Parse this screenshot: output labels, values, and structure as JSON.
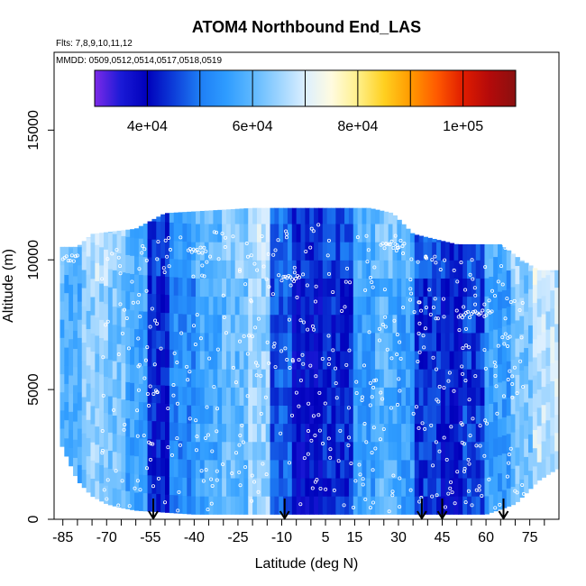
{
  "chart_data": {
    "type": "heatmap",
    "title": "ATOM4 Northbound End_LAS",
    "flights_note": "Flts: 7,8,9,10,11,12",
    "dates_note": "MMDD: 0509,0512,0514,0517,0518,0519",
    "xlabel": "Latitude (deg N)",
    "ylabel": "Altitude (m)",
    "xlim": [
      -88,
      85
    ],
    "ylim": [
      0,
      18000
    ],
    "x_ticks": [
      -85,
      -70,
      -55,
      -40,
      -25,
      -10,
      5,
      15,
      30,
      45,
      60,
      75
    ],
    "x_tick_labels": [
      "-85",
      "-70",
      "-55",
      "-40",
      "-25",
      "-10",
      "5",
      "15",
      "30",
      "45",
      "60",
      "75"
    ],
    "x_minor_ticks": [
      -80,
      -75,
      -65,
      -60,
      -50,
      -45,
      -35,
      -30,
      -20,
      -15,
      -5,
      0,
      10,
      20,
      25,
      35,
      40,
      50,
      55,
      65,
      70,
      80
    ],
    "y_ticks": [
      0,
      5000,
      10000,
      15000
    ],
    "y_tick_labels": [
      "0",
      "5000",
      "10000",
      "15000"
    ],
    "colorbar": {
      "range": [
        30000,
        110000
      ],
      "tick_values": [
        40000,
        60000,
        80000,
        100000
      ],
      "tick_labels": [
        "4e+04",
        "6e+04",
        "8e+04",
        "1e+05"
      ],
      "colors": [
        "#7d2ae8",
        "#1a1ad6",
        "#0000bb",
        "#0d3dd9",
        "#1e7ef5",
        "#2e9cff",
        "#5eb8ff",
        "#9cd4ff",
        "#dcefff",
        "#fffbe0",
        "#fff08a",
        "#ffd020",
        "#ff9a00",
        "#ff5a00",
        "#e01c00",
        "#b40a0a",
        "#8a1010"
      ]
    },
    "altitude_top_by_latitude": [
      [
        -86,
        10500
      ],
      [
        -80,
        10500
      ],
      [
        -75,
        11000
      ],
      [
        -60,
        11200
      ],
      [
        -50,
        11800
      ],
      [
        -20,
        12000
      ],
      [
        0,
        12000
      ],
      [
        20,
        12000
      ],
      [
        28,
        11800
      ],
      [
        35,
        11000
      ],
      [
        50,
        10600
      ],
      [
        60,
        10600
      ],
      [
        65,
        10600
      ],
      [
        72,
        10000
      ],
      [
        78,
        9600
      ],
      [
        85,
        9600
      ]
    ],
    "altitude_bottom_by_latitude": [
      [
        -86,
        3000
      ],
      [
        -80,
        1500
      ],
      [
        -75,
        900
      ],
      [
        -70,
        600
      ],
      [
        -65,
        450
      ],
      [
        -60,
        350
      ],
      [
        -40,
        200
      ],
      [
        -10,
        200
      ],
      [
        30,
        200
      ],
      [
        60,
        200
      ],
      [
        70,
        600
      ],
      [
        78,
        1500
      ],
      [
        85,
        2000
      ]
    ],
    "concentration_columns": [
      {
        "lat_range": [
          -86,
          -78
        ],
        "value": 58000
      },
      {
        "lat_range": [
          -78,
          -70
        ],
        "value": 64000
      },
      {
        "lat_range": [
          -70,
          -63
        ],
        "value": 62000
      },
      {
        "lat_range": [
          -63,
          -56
        ],
        "value": 56000
      },
      {
        "lat_range": [
          -56,
          -48
        ],
        "value": 42000
      },
      {
        "lat_range": [
          -48,
          -40
        ],
        "value": 52000
      },
      {
        "lat_range": [
          -40,
          -30
        ],
        "value": 57000
      },
      {
        "lat_range": [
          -30,
          -22
        ],
        "value": 60000
      },
      {
        "lat_range": [
          -22,
          -14
        ],
        "value": 65000
      },
      {
        "lat_range": [
          -14,
          -6
        ],
        "value": 47000
      },
      {
        "lat_range": [
          -6,
          4
        ],
        "value": 40000
      },
      {
        "lat_range": [
          4,
          14
        ],
        "value": 43000
      },
      {
        "lat_range": [
          14,
          22
        ],
        "value": 55000
      },
      {
        "lat_range": [
          22,
          30
        ],
        "value": 59000
      },
      {
        "lat_range": [
          30,
          36
        ],
        "value": 55000
      },
      {
        "lat_range": [
          36,
          44
        ],
        "value": 44000
      },
      {
        "lat_range": [
          44,
          52
        ],
        "value": 41000
      },
      {
        "lat_range": [
          52,
          60
        ],
        "value": 45000
      },
      {
        "lat_range": [
          60,
          68
        ],
        "value": 55000
      },
      {
        "lat_range": [
          68,
          76
        ],
        "value": 62000
      },
      {
        "lat_range": [
          76,
          86
        ],
        "value": 68000
      }
    ],
    "arrow_latitudes": [
      -54,
      -9,
      38,
      45,
      66
    ],
    "sample_tracks": [
      {
        "lat_start": -85,
        "lat_end": -80,
        "alt": 10100
      },
      {
        "lat_start": -42,
        "lat_end": -36,
        "alt": 10400
      },
      {
        "lat_start": 24,
        "lat_end": 32,
        "alt": 10600
      },
      {
        "lat_start": 50,
        "lat_end": 62,
        "alt": 7900
      },
      {
        "lat_start": 66,
        "lat_end": 76,
        "alt": 10500
      },
      {
        "lat_start": -10,
        "lat_end": -4,
        "alt": 9300
      }
    ]
  }
}
